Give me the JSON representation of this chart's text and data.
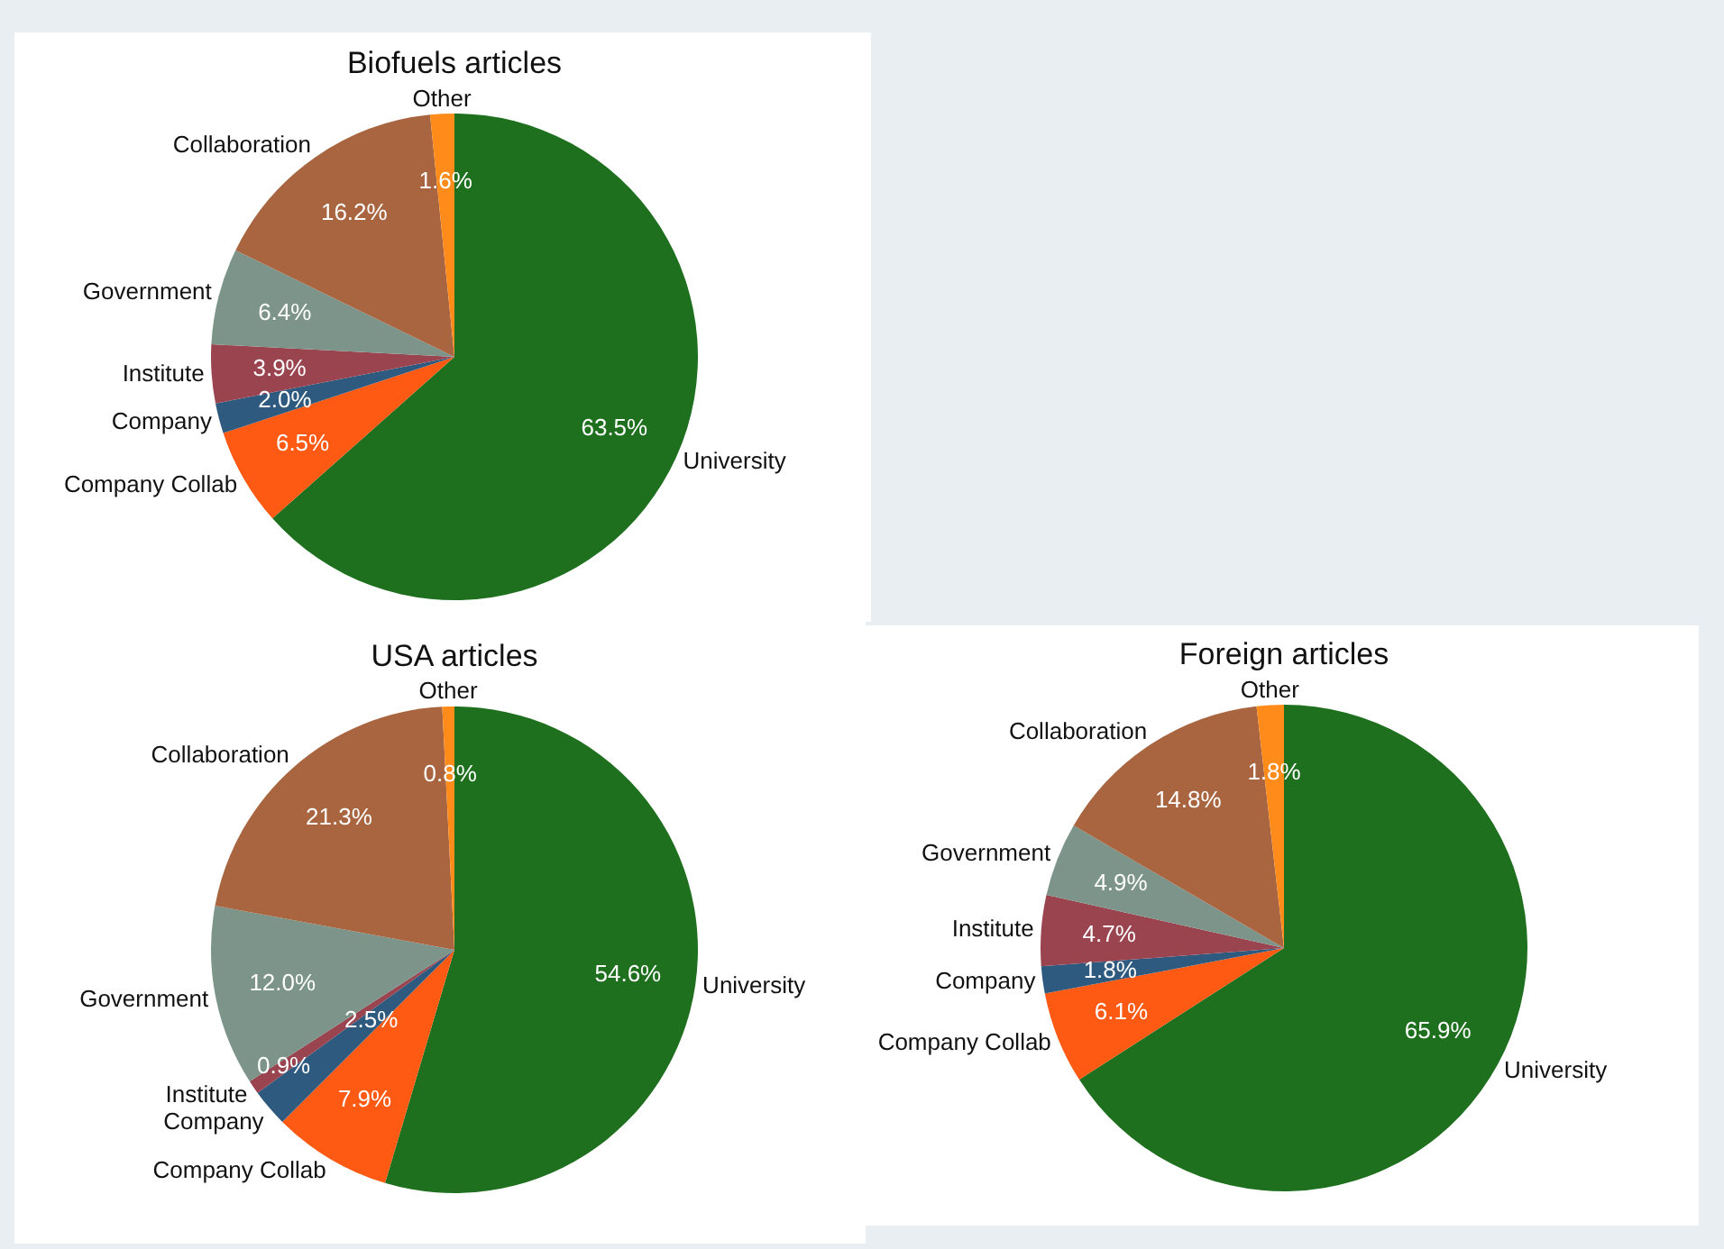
{
  "chart_data": [
    {
      "type": "pie",
      "title": "Biofuels articles",
      "categories": [
        "University",
        "Company Collab",
        "Company",
        "Institute",
        "Government",
        "Collaboration",
        "Other"
      ],
      "values": [
        63.5,
        6.5,
        2.0,
        3.9,
        6.4,
        16.2,
        1.6
      ],
      "value_labels": [
        "63.5%",
        "6.5%",
        "2.0%",
        "3.9%",
        "6.4%",
        "16.2%",
        "1.6%"
      ],
      "colors": [
        "#1e701e",
        "#ff5a14",
        "#2e5a80",
        "#9a4450",
        "#7c948a",
        "#a8653f",
        "#ff8c1a"
      ]
    },
    {
      "type": "pie",
      "title": "USA articles",
      "categories": [
        "University",
        "Company Collab",
        "Company",
        "Institute",
        "Government",
        "Collaboration",
        "Other"
      ],
      "values": [
        54.6,
        7.9,
        2.5,
        0.9,
        12.0,
        21.3,
        0.8
      ],
      "value_labels": [
        "54.6%",
        "7.9%",
        "2.5%",
        "0.9%",
        "12.0%",
        "21.3%",
        "0.8%"
      ],
      "colors": [
        "#1e701e",
        "#ff5a14",
        "#2e5a80",
        "#9a4450",
        "#7c948a",
        "#a8653f",
        "#ff8c1a"
      ]
    },
    {
      "type": "pie",
      "title": "Foreign articles",
      "categories": [
        "University",
        "Company Collab",
        "Company",
        "Institute",
        "Government",
        "Collaboration",
        "Other"
      ],
      "values": [
        65.9,
        6.1,
        1.8,
        4.7,
        4.9,
        14.8,
        1.8
      ],
      "value_labels": [
        "65.9%",
        "6.1%",
        "1.8%",
        "4.7%",
        "4.9%",
        "14.8%",
        "1.8%"
      ],
      "colors": [
        "#1e701e",
        "#ff5a14",
        "#2e5a80",
        "#9a4450",
        "#7c948a",
        "#a8653f",
        "#ff8c1a"
      ]
    }
  ]
}
